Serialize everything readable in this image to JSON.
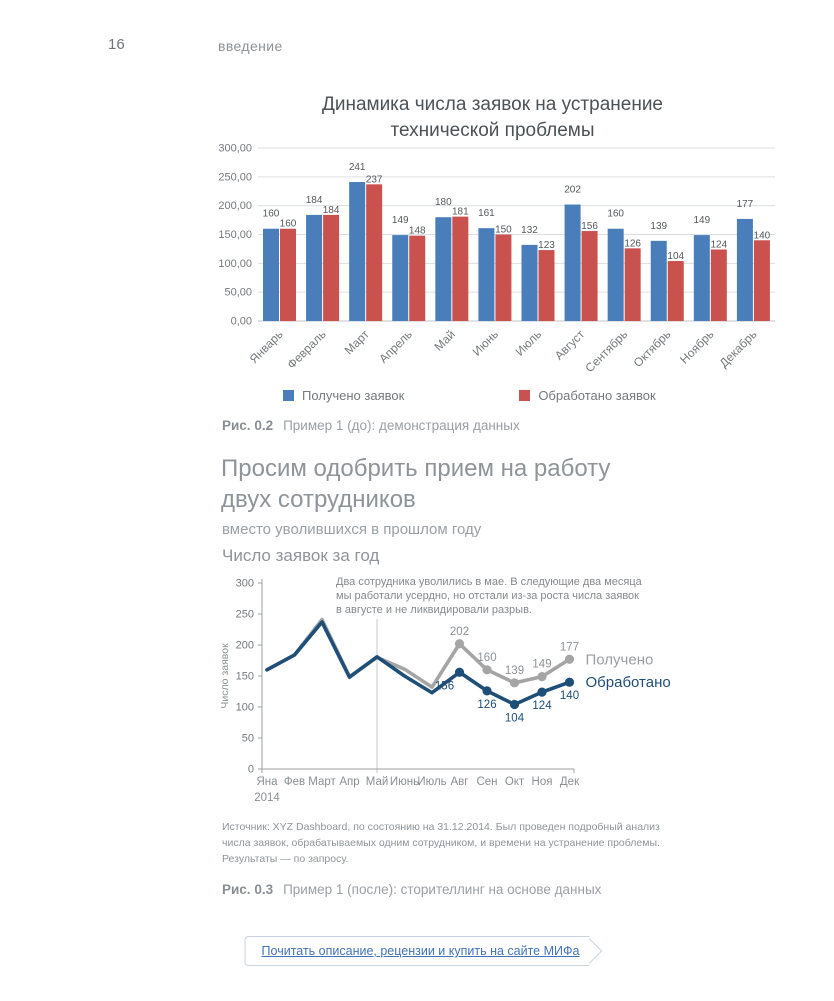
{
  "page": {
    "number": "16",
    "running_head": "введение"
  },
  "colors": {
    "bar_blue": "#4a7ebb",
    "bar_red": "#c9524e",
    "line_gray": "#a5a5a5",
    "line_navy": "#1f4e79",
    "link_blue": "#4273b8"
  },
  "chart_data": [
    {
      "type": "bar",
      "title": "Динамика числа заявок на устранение технической проблемы",
      "title_lines": [
        "Динамика числа заявок на устранение",
        "технической проблемы"
      ],
      "categories": [
        "Январь",
        "Февраль",
        "Март",
        "Апрель",
        "Май",
        "Июнь",
        "Июль",
        "Август",
        "Сентябрь",
        "Октябрь",
        "Ноябрь",
        "Декабрь"
      ],
      "series": [
        {
          "name": "Получено заявок",
          "color": "#4a7ebb",
          "values": [
            160,
            184,
            241,
            149,
            180,
            161,
            132,
            202,
            160,
            139,
            149,
            177
          ]
        },
        {
          "name": "Обработано заявок",
          "color": "#c9524e",
          "values": [
            160,
            184,
            237,
            148,
            181,
            150,
            123,
            156,
            126,
            104,
            124,
            140
          ]
        }
      ],
      "ylim": [
        0,
        300
      ],
      "y_ticks": [
        {
          "value": 0,
          "label": "0,00"
        },
        {
          "value": 50,
          "label": "50,00"
        },
        {
          "value": 100,
          "label": "100,00"
        },
        {
          "value": 150,
          "label": "150,00"
        },
        {
          "value": 200,
          "label": "200,00"
        },
        {
          "value": 250,
          "label": "250,00"
        },
        {
          "value": 300,
          "label": "300,00"
        }
      ],
      "grid": true,
      "legend_position": "bottom"
    },
    {
      "type": "line",
      "title": "Число заявок за год",
      "x": [
        "Яна",
        "Фев",
        "Март",
        "Апр",
        "Май",
        "Июнь",
        "Июль",
        "Авг",
        "Сен",
        "Окт",
        "Ноя",
        "Дек"
      ],
      "x_axis_year": "2014",
      "ylabel": "Число заявок",
      "ylim": [
        0,
        300
      ],
      "y_ticks": [
        0,
        50,
        100,
        150,
        200,
        250,
        300
      ],
      "grid": false,
      "reference_line_x": "Май",
      "series": [
        {
          "name": "Получено",
          "color": "#a5a5a5",
          "values": [
            160,
            184,
            241,
            149,
            180,
            161,
            132,
            202,
            160,
            139,
            149,
            177
          ],
          "labeled_from_index": 7
        },
        {
          "name": "Обработано",
          "color": "#1f4e79",
          "values": [
            160,
            184,
            237,
            148,
            181,
            150,
            123,
            156,
            126,
            104,
            124,
            140
          ],
          "labeled_from_index": 7
        }
      ],
      "annotation": {
        "lines": [
          "Два сотрудника уволились в мае. В следующие два месяца",
          "мы работали усердно, но отстали из-за роста числа заявок",
          "в августе и не ликвидировали разрыв."
        ]
      }
    }
  ],
  "figure2": {
    "label": "Рис. 0.2",
    "text": "Пример 1 (до): демонстрация данных"
  },
  "figure3": {
    "label": "Рис. 0.3",
    "text": "Пример 1 (после): сторителлинг на основе данных"
  },
  "section": {
    "headline_lines": [
      "Просим одобрить прием на работу",
      "двух сотрудников"
    ],
    "subtitle": "вместо уволившихся в прошлом году"
  },
  "source": {
    "lines": [
      "Источник: XYZ Dashboard, по состоянию на 31.12.2014. Был проведен подробный анализ",
      "числа заявок, обрабатываемых одним сотрудником, и времени на устранение проблемы.",
      "Результаты — по запросу."
    ]
  },
  "footer": {
    "link_label": "Почитать описание, рецензии и купить на сайте МИФа"
  }
}
